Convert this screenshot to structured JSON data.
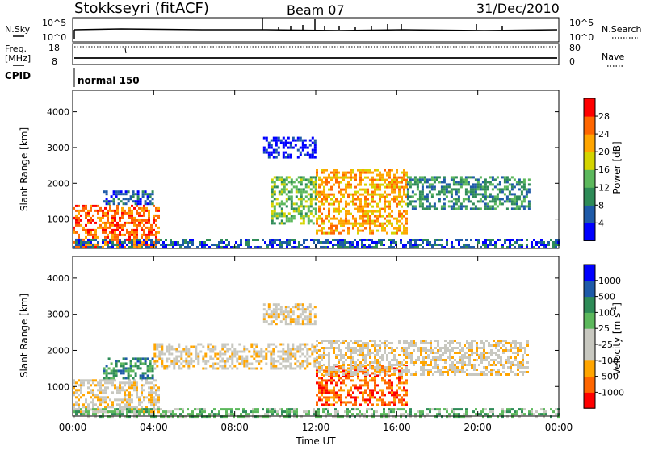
{
  "header": {
    "station": "Stokkseyri (fitACF)",
    "beam": "Beam 07",
    "date": "31/Dec/2010"
  },
  "status_panels": {
    "nsky_label": "N.Sky",
    "nsky_ticks": [
      "10^5",
      "10^0"
    ],
    "nsearch_label": "N.Search",
    "nsearch_ticks": [
      "10^5",
      "10^0"
    ],
    "freq_label": "Freq.",
    "freq_unit": "[MHz]",
    "freq_ticks": [
      "18",
      "8"
    ],
    "nave_label": "Nave",
    "nave_ticks": [
      "80",
      "0"
    ],
    "cpid_label": "CPID",
    "cpid_value": "normal 150"
  },
  "chart_data": [
    {
      "type": "heatmap",
      "name": "power",
      "ylabel": "Slant Range [km]",
      "ylim": [
        180,
        4600
      ],
      "yticks": [
        "4000",
        "3000",
        "2000",
        "1000"
      ],
      "xlim": [
        0,
        24
      ],
      "colorbar": {
        "label": "Power [dB]",
        "ticks": [
          "28",
          "24",
          "20",
          "16",
          "12",
          "8",
          "4"
        ],
        "colors": [
          "#0000ff",
          "#1e5aa8",
          "#2e8b57",
          "#5cb85c",
          "#d4d400",
          "#ffa500",
          "#ff6600",
          "#ff0000"
        ]
      },
      "regions": [
        {
          "t0": 0.0,
          "t1": 4.2,
          "r0": 200,
          "r1": 1400,
          "level": 6
        },
        {
          "t0": 1.5,
          "t1": 4.0,
          "r0": 1400,
          "r1": 1800,
          "level": 1
        },
        {
          "t0": 9.4,
          "t1": 12.0,
          "r0": 2700,
          "r1": 3300,
          "level": 0
        },
        {
          "t0": 9.8,
          "t1": 12.0,
          "r0": 900,
          "r1": 2200,
          "level": 3
        },
        {
          "t0": 12.0,
          "t1": 16.5,
          "r0": 600,
          "r1": 2400,
          "level": 5
        },
        {
          "t0": 16.5,
          "t1": 22.5,
          "r0": 1300,
          "r1": 2200,
          "level": 2
        },
        {
          "t0": 0.0,
          "t1": 24.0,
          "r0": 180,
          "r1": 450,
          "level": 1
        }
      ]
    },
    {
      "type": "heatmap",
      "name": "velocity",
      "ylabel": "Slant Range [km]",
      "ylim": [
        180,
        4600
      ],
      "yticks": [
        "4000",
        "3000",
        "2000",
        "1000"
      ],
      "xlim": [
        0,
        24
      ],
      "xticks": [
        "00:00",
        "04:00",
        "08:00",
        "12:00",
        "16:00",
        "20:00",
        "00:00"
      ],
      "xlabel": "Time UT",
      "colorbar": {
        "label": "Velocity [m s",
        "label_sup": "-1",
        "label_end": "]",
        "ticks": [
          "1000",
          "500",
          "100",
          "25",
          "-25",
          "-100",
          "-500",
          "-1000"
        ],
        "colors": [
          "#ff0000",
          "#ff6600",
          "#ffa500",
          "#c8c8c0",
          "#c8c8c0",
          "#5cb85c",
          "#2e8b57",
          "#1e5aa8",
          "#0000ff"
        ]
      },
      "regions": [
        {
          "t0": 0.0,
          "t1": 4.2,
          "r0": 300,
          "r1": 1200,
          "level": 3
        },
        {
          "t0": 1.5,
          "t1": 4.0,
          "r0": 1200,
          "r1": 1800,
          "level": 6
        },
        {
          "t0": 4.0,
          "t1": 12.0,
          "r0": 1500,
          "r1": 2200,
          "level": 3
        },
        {
          "t0": 9.4,
          "t1": 12.0,
          "r0": 2700,
          "r1": 3300,
          "level": 3
        },
        {
          "t0": 12.0,
          "t1": 16.5,
          "r0": 500,
          "r1": 1600,
          "level": 1
        },
        {
          "t0": 12.0,
          "t1": 22.5,
          "r0": 1300,
          "r1": 2300,
          "level": 3
        },
        {
          "t0": 0.0,
          "t1": 24.0,
          "r0": 180,
          "r1": 400,
          "level": 5
        }
      ]
    }
  ]
}
